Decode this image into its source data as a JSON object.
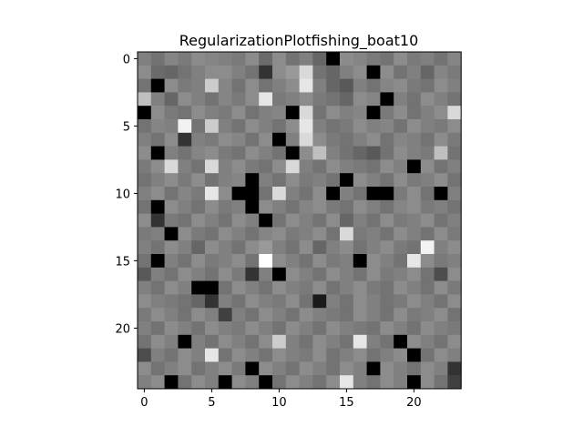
{
  "chart_data": {
    "type": "heatmap",
    "title": "RegularizationPlotfishing_boat10",
    "xlabel": "",
    "ylabel": "",
    "colormap": "gray",
    "value_range": [
      0,
      1
    ],
    "x_ticks": [
      0,
      5,
      10,
      15,
      20
    ],
    "y_ticks": [
      0,
      5,
      10,
      15,
      20
    ],
    "rows": 25,
    "cols": 24,
    "grid": false,
    "values": [
      [
        0.5,
        0.45,
        0.52,
        0.48,
        0.55,
        0.52,
        0.5,
        0.48,
        0.55,
        0.42,
        0.55,
        0.45,
        0.5,
        0.4,
        0.0,
        0.55,
        0.52,
        0.48,
        0.45,
        0.55,
        0.48,
        0.5,
        0.45,
        0.52
      ],
      [
        0.55,
        0.42,
        0.4,
        0.45,
        0.5,
        0.55,
        0.55,
        0.5,
        0.45,
        0.2,
        0.55,
        0.6,
        0.85,
        0.45,
        0.4,
        0.5,
        0.55,
        0.0,
        0.55,
        0.45,
        0.5,
        0.4,
        0.52,
        0.48
      ],
      [
        0.45,
        0.0,
        0.55,
        0.48,
        0.5,
        0.8,
        0.52,
        0.45,
        0.55,
        0.45,
        0.5,
        0.55,
        0.9,
        0.5,
        0.4,
        0.35,
        0.5,
        0.45,
        0.52,
        0.55,
        0.48,
        0.45,
        0.55,
        0.5
      ],
      [
        0.75,
        0.5,
        0.4,
        0.55,
        0.5,
        0.45,
        0.52,
        0.48,
        0.55,
        0.9,
        0.48,
        0.5,
        0.55,
        0.48,
        0.45,
        0.4,
        0.55,
        0.52,
        0.0,
        0.5,
        0.45,
        0.55,
        0.5,
        0.45
      ],
      [
        0.0,
        0.55,
        0.48,
        0.45,
        0.55,
        0.5,
        0.48,
        0.55,
        0.45,
        0.5,
        0.52,
        0.0,
        0.85,
        0.45,
        0.55,
        0.5,
        0.52,
        0.0,
        0.48,
        0.55,
        0.45,
        0.5,
        0.55,
        0.85
      ],
      [
        0.45,
        0.52,
        0.5,
        0.95,
        0.45,
        0.8,
        0.5,
        0.45,
        0.55,
        0.5,
        0.45,
        0.55,
        0.9,
        0.5,
        0.45,
        0.48,
        0.55,
        0.5,
        0.52,
        0.45,
        0.55,
        0.5,
        0.48,
        0.55
      ],
      [
        0.5,
        0.45,
        0.55,
        0.2,
        0.5,
        0.48,
        0.55,
        0.52,
        0.45,
        0.55,
        0.0,
        0.5,
        0.85,
        0.55,
        0.48,
        0.45,
        0.5,
        0.55,
        0.45,
        0.52,
        0.5,
        0.45,
        0.55,
        0.48
      ],
      [
        0.55,
        0.0,
        0.5,
        0.45,
        0.52,
        0.55,
        0.48,
        0.45,
        0.55,
        0.5,
        0.45,
        0.0,
        0.55,
        0.75,
        0.5,
        0.45,
        0.4,
        0.35,
        0.45,
        0.55,
        0.5,
        0.48,
        0.75,
        0.45
      ],
      [
        0.48,
        0.55,
        0.85,
        0.5,
        0.45,
        0.85,
        0.5,
        0.55,
        0.48,
        0.45,
        0.55,
        0.85,
        0.5,
        0.45,
        0.55,
        0.5,
        0.48,
        0.45,
        0.55,
        0.5,
        0.0,
        0.55,
        0.45,
        0.5
      ],
      [
        0.45,
        0.5,
        0.55,
        0.48,
        0.55,
        0.45,
        0.5,
        0.52,
        0.0,
        0.5,
        0.45,
        0.55,
        0.48,
        0.5,
        0.45,
        0.0,
        0.55,
        0.5,
        0.45,
        0.55,
        0.48,
        0.5,
        0.55,
        0.45
      ],
      [
        0.5,
        0.55,
        0.45,
        0.52,
        0.48,
        0.9,
        0.55,
        0.0,
        0.0,
        0.45,
        0.85,
        0.5,
        0.45,
        0.55,
        0.0,
        0.5,
        0.45,
        0.0,
        0.0,
        0.48,
        0.55,
        0.45,
        0.0,
        0.5
      ],
      [
        0.45,
        0.0,
        0.55,
        0.5,
        0.45,
        0.55,
        0.48,
        0.5,
        0.0,
        0.55,
        0.5,
        0.45,
        0.52,
        0.55,
        0.48,
        0.45,
        0.55,
        0.5,
        0.45,
        0.52,
        0.55,
        0.48,
        0.5,
        0.45
      ],
      [
        0.55,
        0.2,
        0.48,
        0.45,
        0.55,
        0.5,
        0.45,
        0.55,
        0.5,
        0.0,
        0.45,
        0.55,
        0.5,
        0.45,
        0.55,
        0.4,
        0.5,
        0.45,
        0.55,
        0.48,
        0.5,
        0.55,
        0.45,
        0.5
      ],
      [
        0.48,
        0.5,
        0.0,
        0.55,
        0.48,
        0.45,
        0.55,
        0.5,
        0.45,
        0.52,
        0.55,
        0.48,
        0.5,
        0.55,
        0.45,
        0.85,
        0.48,
        0.5,
        0.45,
        0.55,
        0.5,
        0.45,
        0.55,
        0.48
      ],
      [
        0.5,
        0.45,
        0.55,
        0.5,
        0.4,
        0.55,
        0.5,
        0.45,
        0.55,
        0.6,
        0.5,
        0.45,
        0.55,
        0.4,
        0.5,
        0.55,
        0.45,
        0.5,
        0.55,
        0.48,
        0.45,
        0.95,
        0.5,
        0.55
      ],
      [
        0.45,
        0.0,
        0.5,
        0.45,
        0.55,
        0.48,
        0.5,
        0.55,
        0.45,
        1.0,
        0.55,
        0.5,
        0.45,
        0.55,
        0.48,
        0.5,
        0.0,
        0.55,
        0.5,
        0.45,
        0.9,
        0.55,
        0.48,
        0.5
      ],
      [
        0.35,
        0.5,
        0.45,
        0.55,
        0.5,
        0.45,
        0.55,
        0.48,
        0.2,
        0.5,
        0.0,
        0.55,
        0.5,
        0.45,
        0.55,
        0.5,
        0.45,
        0.55,
        0.48,
        0.5,
        0.55,
        0.45,
        0.3,
        0.55
      ],
      [
        0.5,
        0.45,
        0.55,
        0.5,
        0.0,
        0.0,
        0.45,
        0.55,
        0.5,
        0.45,
        0.55,
        0.5,
        0.48,
        0.55,
        0.45,
        0.5,
        0.55,
        0.48,
        0.45,
        0.55,
        0.5,
        0.45,
        0.55,
        0.48
      ],
      [
        0.55,
        0.5,
        0.48,
        0.45,
        0.4,
        0.2,
        0.5,
        0.45,
        0.55,
        0.5,
        0.48,
        0.55,
        0.45,
        0.1,
        0.5,
        0.45,
        0.55,
        0.5,
        0.45,
        0.48,
        0.55,
        0.5,
        0.45,
        0.55
      ],
      [
        0.48,
        0.55,
        0.5,
        0.45,
        0.55,
        0.5,
        0.25,
        0.5,
        0.45,
        0.55,
        0.5,
        0.45,
        0.55,
        0.5,
        0.48,
        0.45,
        0.55,
        0.5,
        0.45,
        0.55,
        0.48,
        0.5,
        0.55,
        0.45
      ],
      [
        0.5,
        0.45,
        0.55,
        0.5,
        0.45,
        0.55,
        0.5,
        0.48,
        0.55,
        0.5,
        0.45,
        0.55,
        0.5,
        0.45,
        0.55,
        0.5,
        0.48,
        0.45,
        0.55,
        0.5,
        0.45,
        0.55,
        0.5,
        0.48
      ],
      [
        0.45,
        0.55,
        0.5,
        0.0,
        0.5,
        0.45,
        0.55,
        0.5,
        0.45,
        0.55,
        0.8,
        0.5,
        0.45,
        0.55,
        0.5,
        0.45,
        0.9,
        0.5,
        0.45,
        0.0,
        0.55,
        0.5,
        0.45,
        0.55
      ],
      [
        0.3,
        0.5,
        0.45,
        0.55,
        0.5,
        0.9,
        0.45,
        0.55,
        0.5,
        0.45,
        0.55,
        0.5,
        0.48,
        0.55,
        0.45,
        0.5,
        0.55,
        0.45,
        0.5,
        0.55,
        0.0,
        0.45,
        0.55,
        0.5
      ],
      [
        0.55,
        0.45,
        0.5,
        0.55,
        0.45,
        0.5,
        0.55,
        0.48,
        0.0,
        0.55,
        0.5,
        0.45,
        0.55,
        0.5,
        0.45,
        0.55,
        0.5,
        0.0,
        0.55,
        0.5,
        0.45,
        0.55,
        0.5,
        0.2
      ],
      [
        0.5,
        0.55,
        0.0,
        0.45,
        0.55,
        0.5,
        0.0,
        0.55,
        0.5,
        0.0,
        0.45,
        0.55,
        0.5,
        0.45,
        0.55,
        0.9,
        0.5,
        0.45,
        0.55,
        0.5,
        0.0,
        0.55,
        0.45,
        0.25
      ]
    ]
  }
}
